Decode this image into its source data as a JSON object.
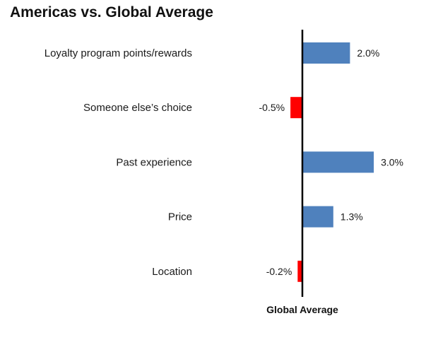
{
  "chart_data": {
    "type": "bar",
    "orientation": "horizontal",
    "title": "Americas vs. Global Average",
    "xlabel": "Global Average",
    "ylabel": "",
    "categories": [
      "Loyalty program points/rewards",
      "Someone else’s choice",
      "Past experience",
      "Price",
      "Location"
    ],
    "values": [
      2.0,
      -0.5,
      3.0,
      1.3,
      -0.2
    ],
    "value_labels": [
      "2.0%",
      "-0.5%",
      "3.0%",
      "1.3%",
      "-0.2%"
    ],
    "unit": "%",
    "xlim": [
      -1.0,
      3.0
    ],
    "grid": false,
    "legend": "none",
    "colors": {
      "positive": "#4f81bd",
      "negative": "#ff0000",
      "axis": "#000000"
    }
  }
}
